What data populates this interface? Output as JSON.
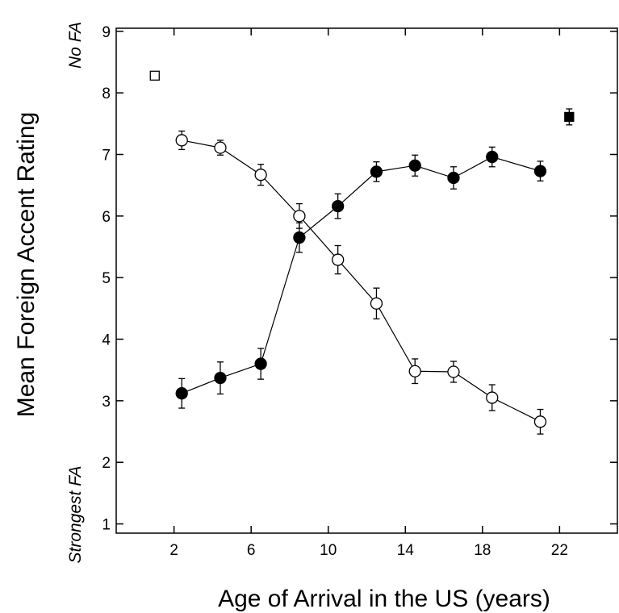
{
  "chart_data": {
    "type": "scatter",
    "xlabel": "Age of Arrival in the US (years)",
    "ylabel": "Mean Foreign Accent Rating",
    "ylabel_top": "No FA",
    "ylabel_bottom": "Strongest FA",
    "xlim": [
      -1,
      25
    ],
    "ylim": [
      0.85,
      9.05
    ],
    "xticks": [
      2,
      6,
      10,
      14,
      18,
      22
    ],
    "yticks": [
      1,
      2,
      3,
      4,
      5,
      6,
      7,
      8,
      9
    ],
    "grid": false,
    "legend": false,
    "series": [
      {
        "style": "open-circle-line",
        "x": [
          2.4,
          4.4,
          6.5,
          8.5,
          10.5,
          12.5,
          14.5,
          16.5,
          18.5,
          21.0
        ],
        "values": [
          7.23,
          7.11,
          6.67,
          6.0,
          5.29,
          4.58,
          3.48,
          3.47,
          3.05,
          2.66
        ],
        "error": [
          0.15,
          0.12,
          0.17,
          0.2,
          0.23,
          0.25,
          0.2,
          0.17,
          0.21,
          0.2
        ]
      },
      {
        "style": "filled-circle-line",
        "x": [
          2.4,
          4.4,
          6.5,
          8.5,
          10.5,
          12.5,
          14.5,
          16.5,
          18.5,
          21.0
        ],
        "values": [
          3.12,
          3.37,
          3.6,
          5.65,
          6.16,
          6.72,
          6.82,
          6.62,
          6.96,
          6.73
        ],
        "error": [
          0.24,
          0.26,
          0.25,
          0.24,
          0.2,
          0.16,
          0.17,
          0.18,
          0.16,
          0.16
        ]
      },
      {
        "style": "open-square",
        "x": [
          1.0
        ],
        "values": [
          8.28
        ],
        "error": [
          0
        ]
      },
      {
        "style": "filled-square",
        "x": [
          22.5
        ],
        "values": [
          7.61
        ],
        "error": [
          0.13
        ]
      }
    ]
  }
}
